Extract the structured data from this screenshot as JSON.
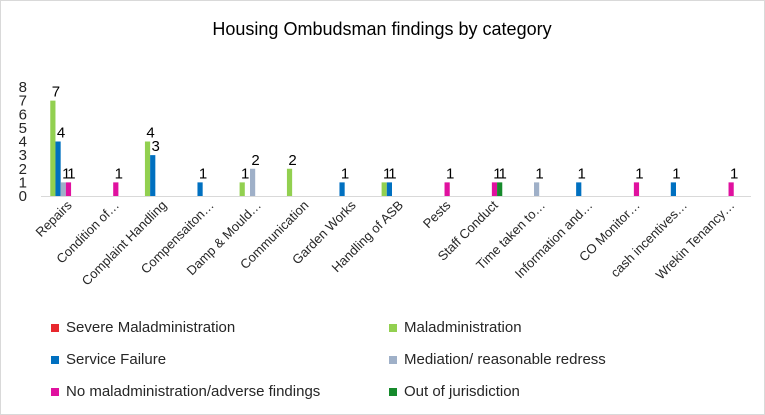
{
  "chart_data": {
    "type": "bar",
    "title": "Housing Ombudsman findings by category",
    "xlabel": "",
    "ylabel": "",
    "ylim": [
      0,
      8
    ],
    "y_ticks": [
      "0",
      "1",
      "2",
      "3",
      "4",
      "5",
      "6",
      "7",
      "8"
    ],
    "grid": false,
    "legend_position": "bottom",
    "categories": [
      "Repairs",
      "Condition of…",
      "Complaint Handling",
      "Compensaiton…",
      "Damp & Mould…",
      "Communication",
      "Garden Works",
      "Handling of ASB",
      "Pests",
      "Staff Conduct",
      "Time taken to…",
      "Information and…",
      "CO Monitor…",
      "cash incentives…",
      "Wrekin Tenancy…"
    ],
    "series": [
      {
        "name": "Severe Maladministration",
        "color": "#e8282e",
        "values": [
          null,
          null,
          null,
          null,
          null,
          null,
          null,
          null,
          null,
          null,
          null,
          null,
          null,
          null,
          null
        ]
      },
      {
        "name": "Maladministration",
        "color": "#92d050",
        "values": [
          7,
          null,
          4,
          null,
          1,
          2,
          null,
          1,
          null,
          null,
          null,
          null,
          null,
          null,
          null
        ]
      },
      {
        "name": "Service Failure",
        "color": "#0070c0",
        "values": [
          4,
          null,
          3,
          1,
          null,
          null,
          1,
          1,
          null,
          null,
          null,
          1,
          null,
          1,
          null
        ]
      },
      {
        "name": "Mediation/ reasonable redress",
        "color": "#9fb0c8",
        "values": [
          1,
          null,
          null,
          null,
          2,
          null,
          null,
          null,
          null,
          null,
          1,
          null,
          null,
          null,
          null
        ]
      },
      {
        "name": "No maladministration/adverse findings",
        "color": "#e0119f",
        "values": [
          1,
          1,
          null,
          null,
          null,
          null,
          null,
          null,
          1,
          1,
          null,
          null,
          1,
          null,
          1
        ]
      },
      {
        "name": "Out of jurisdiction",
        "color": "#168a2c",
        "values": [
          null,
          null,
          null,
          null,
          null,
          null,
          null,
          null,
          null,
          1,
          null,
          null,
          null,
          null,
          null
        ]
      }
    ]
  }
}
